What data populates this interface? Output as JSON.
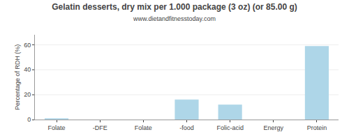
{
  "chart_data": {
    "type": "bar",
    "title": "Gelatin desserts, dry mix per 1.000 package (3 oz) (or 85.00 g)",
    "subtitle": "www.dietandfitnesstoday.com",
    "categories": [
      "Folate",
      "-DFE",
      "Folate",
      "-food",
      "Folic-acid",
      "Energy",
      "Protein"
    ],
    "values": [
      1.0,
      0.0,
      0.0,
      16.0,
      12.0,
      0.0,
      59.0
    ],
    "color": "#aed6e8",
    "ylabel": "Percentage of RDH (%)",
    "ylim": [
      0,
      68
    ],
    "yticks": [
      0,
      20,
      40,
      60
    ],
    "grid": true
  }
}
